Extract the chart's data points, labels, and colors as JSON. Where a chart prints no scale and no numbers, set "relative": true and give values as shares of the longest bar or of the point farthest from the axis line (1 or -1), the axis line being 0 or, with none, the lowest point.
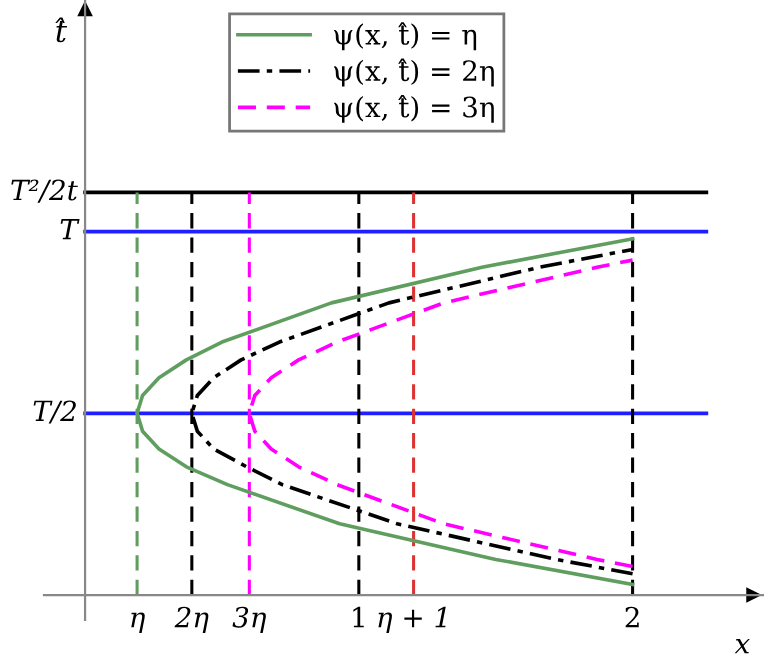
{
  "chart_data": {
    "type": "line",
    "xlabel": "x",
    "annotations": [
      "t̂"
    ],
    "relative": true,
    "xlim": [
      -0.15,
      2.48
    ],
    "xticks": [
      1,
      2
    ],
    "tick_labels": "x",
    "legend": "top",
    "marker": "none",
    "series": [
      {
        "name": "ψ(x, t̂) = η",
        "color": "#5f9e5f",
        "line_style": "solid",
        "x": [
          2,
          1.5,
          0.93,
          0.52,
          0.37,
          0.27,
          0.21,
          0.19,
          0.21,
          0.27,
          0.37,
          0.5,
          0.9,
          1.45,
          2
        ],
        "values": [
          0.03,
          0.1,
          0.2,
          0.31,
          0.36,
          0.41,
          0.46,
          0.51,
          0.56,
          0.61,
          0.66,
          0.71,
          0.82,
          0.92,
          1
        ]
      },
      {
        "name": "ψ(x, t̂) = 2η",
        "color": "#000000",
        "line_style": "dashdot",
        "x": [
          2,
          1.72,
          1.14,
          0.72,
          0.59,
          0.47,
          0.41,
          0.39,
          0.41,
          0.47,
          0.57,
          0.71,
          1.11,
          1.66,
          2
        ],
        "values": [
          0.06,
          0.1,
          0.2,
          0.31,
          0.36,
          0.41,
          0.46,
          0.51,
          0.56,
          0.61,
          0.66,
          0.71,
          0.82,
          0.92,
          0.97
        ]
      },
      {
        "name": "ψ(x, t̂) = 3η",
        "color": "#ff00ff",
        "line_style": "dashed",
        "x": [
          2,
          1.87,
          1.31,
          0.92,
          0.78,
          0.68,
          0.62,
          0.6,
          0.62,
          0.68,
          0.78,
          0.92,
          1.31,
          1.87,
          2
        ],
        "values": [
          0.08,
          0.1,
          0.2,
          0.31,
          0.36,
          0.41,
          0.46,
          0.51,
          0.56,
          0.61,
          0.66,
          0.71,
          0.82,
          0.92,
          0.94
        ]
      }
    ],
    "ref_lines": [
      {
        "axis": "y",
        "value": 1.13,
        "label": "T²/2t",
        "color": "#000000",
        "line_style": "solid"
      },
      {
        "axis": "y",
        "value": 1.02,
        "label": "T",
        "color": "#1f1fff",
        "line_style": "solid"
      },
      {
        "axis": "y",
        "value": 0.51,
        "label": "T/2",
        "color": "#1f1fff",
        "line_style": "solid"
      },
      {
        "axis": "x",
        "value": 0.19,
        "label": "η",
        "color": "#5f9e5f",
        "line_style": "dashed"
      },
      {
        "axis": "x",
        "value": 0.39,
        "label": "2η",
        "color": "#000000",
        "line_style": "dashed"
      },
      {
        "axis": "x",
        "value": 0.6,
        "label": "3η",
        "color": "#ff00ff",
        "line_style": "dashed"
      },
      {
        "axis": "x",
        "value": 1,
        "color": "#000000",
        "line_style": "dashed"
      },
      {
        "axis": "x",
        "value": 1.2,
        "label": "η + 1",
        "color": "#dd3333",
        "line_style": "dashed"
      },
      {
        "axis": "x",
        "value": 2,
        "color": "#000000",
        "line_style": "dashed"
      }
    ]
  }
}
